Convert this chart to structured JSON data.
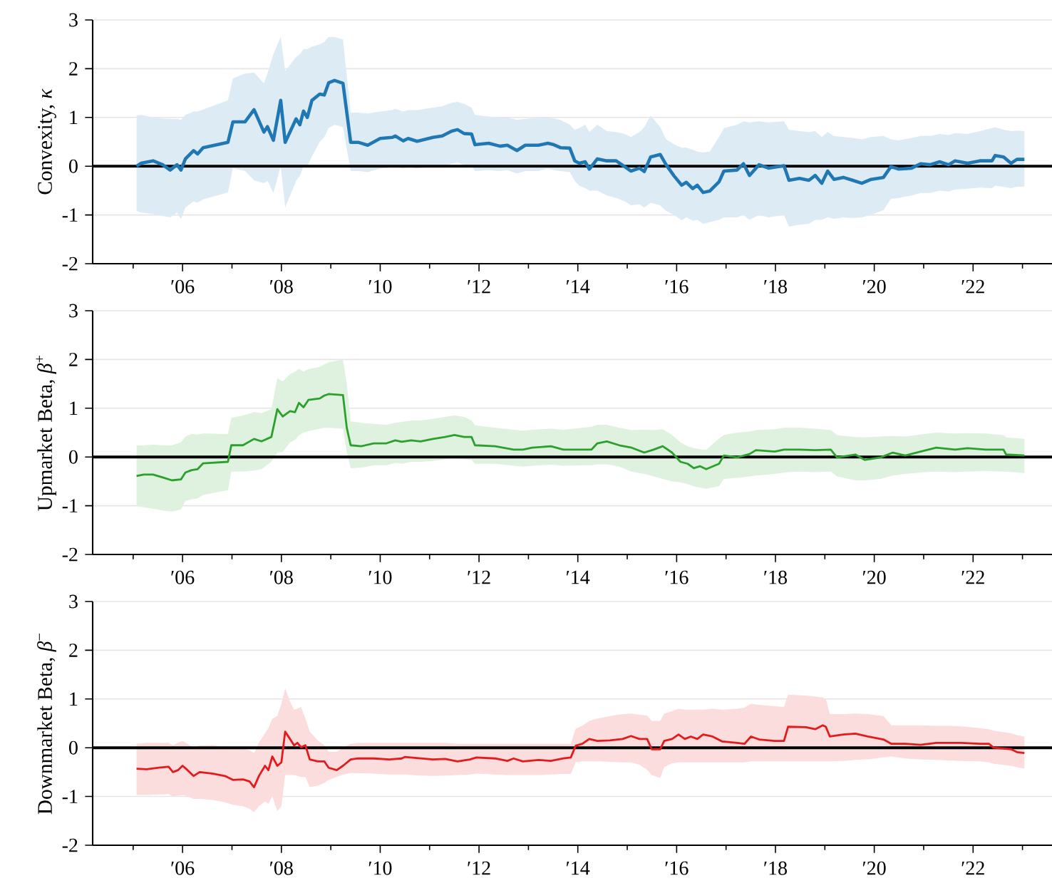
{
  "chart_data": [
    {
      "type": "line",
      "ylabel": "Convexity, *κ*",
      "xlim": [
        "2004-03-07",
        "2023-08-07"
      ],
      "ylim": [
        -2,
        3
      ],
      "yticks": [
        -2,
        -1,
        0,
        1,
        2,
        3
      ],
      "grid": "y",
      "xticks": [
        {
          "value": "2005",
          "label": null
        },
        {
          "value": "2006",
          "label": "′06"
        },
        {
          "value": "2007",
          "label": null
        },
        {
          "value": "2008",
          "label": "′08"
        },
        {
          "value": "2009",
          "label": null
        },
        {
          "value": "2010",
          "label": "′10"
        },
        {
          "value": "2011",
          "label": null
        },
        {
          "value": "2012",
          "label": "′12"
        },
        {
          "value": "2013",
          "label": null
        },
        {
          "value": "2014",
          "label": "′14"
        },
        {
          "value": "2015",
          "label": null
        },
        {
          "value": "2016",
          "label": "′16"
        },
        {
          "value": "2017",
          "label": null
        },
        {
          "value": "2018",
          "label": "′18"
        },
        {
          "value": "2019",
          "label": null
        },
        {
          "value": "2020",
          "label": "′20"
        },
        {
          "value": "2021",
          "label": null
        },
        {
          "value": "2022",
          "label": "′22"
        },
        {
          "value": "2023",
          "label": null
        }
      ],
      "ref_lines": [
        {
          "axis": "y",
          "value": 0,
          "color": "#000000"
        }
      ],
      "x": [
        "2005-01-26",
        "2005-02-28",
        "2005-05-28",
        "2005-08-07",
        "2005-10-01",
        "2005-11-21",
        "2005-12-20",
        "2006-01-22",
        "2006-03-23",
        "2006-04-22",
        "2006-06-02",
        "2006-12-02",
        "2007-01-08",
        "2007-04-08",
        "2007-06-13",
        "2007-08-25",
        "2007-09-20",
        "2007-11-03",
        "2007-12-27",
        "2008-01-29",
        "2008-04-19",
        "2008-05-17",
        "2008-06-13",
        "2008-07-11",
        "2008-08-14",
        "2008-10-11",
        "2008-11-14",
        "2008-12-16",
        "2009-01-29",
        "2009-04-01",
        "2009-05-28",
        "2009-07-22",
        "2009-10-01",
        "2010-01-01",
        "2010-04-01",
        "2010-04-22",
        "2010-06-20",
        "2010-07-26",
        "2010-10-01",
        "2011-01-26",
        "2011-04-04",
        "2011-06-13",
        "2011-07-26",
        "2011-09-13",
        "2011-11-07",
        "2011-12-02",
        "2012-03-13",
        "2012-06-05",
        "2012-07-29",
        "2012-10-08",
        "2012-12-09",
        "2013-03-16",
        "2013-05-25",
        "2013-07-08",
        "2013-08-25",
        "2013-11-03",
        "2013-12-09",
        "2014-01-11",
        "2014-02-25",
        "2014-03-27",
        "2014-05-25",
        "2014-08-03",
        "2014-10-11",
        "2014-12-13",
        "2015-01-29",
        "2015-04-01",
        "2015-05-07",
        "2015-06-23",
        "2015-09-02",
        "2015-10-15",
        "2015-12-13",
        "2016-02-07",
        "2016-03-13",
        "2016-04-29",
        "2016-06-02",
        "2016-07-15",
        "2016-09-02",
        "2016-11-10",
        "2016-12-16",
        "2017-03-23",
        "2017-05-10",
        "2017-06-23",
        "2017-09-02",
        "2017-11-10",
        "2018-03-05",
        "2018-04-11",
        "2018-06-27",
        "2018-09-05",
        "2018-10-22",
        "2018-12-09",
        "2019-01-22",
        "2019-03-09",
        "2019-05-17",
        "2019-07-26",
        "2019-10-01",
        "2019-12-09",
        "2020-03-09",
        "2020-05-03",
        "2020-07-01",
        "2020-10-04",
        "2020-12-09",
        "2021-02-17",
        "2021-04-29",
        "2021-07-04",
        "2021-08-21",
        "2021-11-21",
        "2022-02-21",
        "2022-05-21",
        "2022-06-13",
        "2022-08-14",
        "2022-10-08",
        "2022-11-21",
        "2023-01-15"
      ],
      "series": [
        {
          "color": "#1f77b4",
          "values": [
            0.0,
            0.06,
            0.11,
            0.03,
            -0.08,
            0.03,
            -0.08,
            0.15,
            0.32,
            0.25,
            0.38,
            0.49,
            0.91,
            0.91,
            1.16,
            0.7,
            0.81,
            0.53,
            1.35,
            0.49,
            0.97,
            0.85,
            1.13,
            1.0,
            1.35,
            1.48,
            1.46,
            1.71,
            1.76,
            1.7,
            0.49,
            0.49,
            0.43,
            0.57,
            0.59,
            0.62,
            0.52,
            0.57,
            0.51,
            0.59,
            0.62,
            0.72,
            0.75,
            0.67,
            0.66,
            0.44,
            0.47,
            0.41,
            0.43,
            0.32,
            0.43,
            0.43,
            0.47,
            0.44,
            0.38,
            0.37,
            0.11,
            0.06,
            0.09,
            -0.06,
            0.15,
            0.11,
            0.11,
            -0.01,
            -0.1,
            -0.04,
            -0.11,
            0.19,
            0.24,
            0.03,
            -0.2,
            -0.39,
            -0.33,
            -0.46,
            -0.39,
            -0.54,
            -0.51,
            -0.32,
            -0.1,
            -0.08,
            0.05,
            -0.19,
            0.03,
            -0.04,
            0.01,
            -0.29,
            -0.25,
            -0.29,
            -0.19,
            -0.35,
            -0.1,
            -0.27,
            -0.23,
            -0.29,
            -0.35,
            -0.27,
            -0.23,
            -0.01,
            -0.06,
            -0.04,
            0.05,
            0.03,
            0.09,
            0.03,
            0.11,
            0.06,
            0.11,
            0.11,
            0.22,
            0.19,
            0.06,
            0.14,
            0.14
          ],
          "lower": [
            -0.92,
            -0.95,
            -0.98,
            -1.02,
            -1.05,
            -0.95,
            -1.08,
            -0.85,
            -0.72,
            -0.75,
            -0.68,
            -0.54,
            -0.04,
            -0.1,
            -0.29,
            -0.35,
            -0.3,
            -0.55,
            0.0,
            -0.85,
            -0.3,
            -0.2,
            0.0,
            0.0,
            0.2,
            0.5,
            0.6,
            0.78,
            0.85,
            0.8,
            -0.1,
            -0.1,
            -0.12,
            -0.05,
            -0.02,
            0.0,
            -0.05,
            -0.02,
            -0.05,
            0.0,
            0.0,
            0.05,
            0.08,
            0.02,
            0.0,
            -0.1,
            -0.08,
            -0.1,
            -0.08,
            -0.15,
            -0.1,
            -0.1,
            -0.05,
            -0.08,
            -0.1,
            -0.12,
            -0.3,
            -0.4,
            -0.45,
            -0.5,
            -0.5,
            -0.6,
            -0.65,
            -0.72,
            -0.8,
            -0.78,
            -0.85,
            -0.75,
            -0.8,
            -0.92,
            -1.0,
            -1.11,
            -1.05,
            -1.12,
            -1.1,
            -1.18,
            -1.15,
            -1.1,
            -1.05,
            -1.05,
            -1.0,
            -1.1,
            -1.0,
            -1.05,
            -1.0,
            -1.24,
            -1.2,
            -1.18,
            -1.1,
            -1.1,
            -1.05,
            -1.08,
            -1.05,
            -1.06,
            -1.05,
            -1.0,
            -0.9,
            -0.67,
            -0.65,
            -0.6,
            -0.55,
            -0.55,
            -0.5,
            -0.52,
            -0.48,
            -0.46,
            -0.44,
            -0.45,
            -0.4,
            -0.42,
            -0.45,
            -0.42,
            -0.42
          ],
          "upper": [
            1.04,
            1.05,
            1.0,
            0.98,
            0.97,
            0.97,
            0.95,
            1.05,
            1.12,
            1.12,
            1.16,
            1.35,
            1.8,
            1.9,
            1.92,
            1.7,
            1.9,
            2.3,
            2.65,
            1.95,
            2.24,
            2.3,
            2.4,
            2.4,
            2.45,
            2.5,
            2.55,
            2.65,
            2.65,
            2.6,
            1.1,
            1.1,
            1.08,
            1.12,
            1.15,
            1.18,
            1.12,
            1.15,
            1.15,
            1.2,
            1.23,
            1.3,
            1.32,
            1.28,
            1.2,
            1.05,
            1.02,
            1.0,
            1.0,
            0.95,
            0.97,
            1.0,
            1.0,
            0.98,
            0.95,
            0.85,
            0.75,
            0.78,
            0.85,
            0.7,
            0.85,
            0.72,
            0.7,
            0.66,
            0.6,
            0.7,
            0.8,
            1.04,
            0.8,
            0.55,
            0.45,
            0.38,
            0.38,
            0.34,
            0.3,
            0.28,
            0.3,
            0.6,
            0.78,
            0.85,
            0.92,
            0.9,
            0.92,
            0.9,
            0.92,
            0.75,
            0.72,
            0.7,
            0.72,
            0.6,
            0.7,
            0.62,
            0.6,
            0.58,
            0.55,
            0.6,
            0.62,
            0.55,
            0.53,
            0.58,
            0.62,
            0.62,
            0.66,
            0.64,
            0.68,
            0.66,
            0.72,
            0.78,
            0.8,
            0.75,
            0.72,
            0.73,
            0.72
          ]
        }
      ]
    },
    {
      "type": "line",
      "ylabel": "Upmarket Beta, *β*$^{+}$",
      "xlim": [
        "2004-03-07",
        "2023-08-07"
      ],
      "ylim": [
        -2,
        3
      ],
      "yticks": [
        -2,
        -1,
        0,
        1,
        2,
        3
      ],
      "grid": "y",
      "xticks": [
        {
          "value": "2005",
          "label": null
        },
        {
          "value": "2006",
          "label": "′06"
        },
        {
          "value": "2007",
          "label": null
        },
        {
          "value": "2008",
          "label": "′08"
        },
        {
          "value": "2009",
          "label": null
        },
        {
          "value": "2010",
          "label": "′10"
        },
        {
          "value": "2011",
          "label": null
        },
        {
          "value": "2012",
          "label": "′12"
        },
        {
          "value": "2013",
          "label": null
        },
        {
          "value": "2014",
          "label": "′14"
        },
        {
          "value": "2015",
          "label": null
        },
        {
          "value": "2016",
          "label": "′16"
        },
        {
          "value": "2017",
          "label": null
        },
        {
          "value": "2018",
          "label": "′18"
        },
        {
          "value": "2019",
          "label": null
        },
        {
          "value": "2020",
          "label": "′20"
        },
        {
          "value": "2021",
          "label": null
        },
        {
          "value": "2022",
          "label": "′22"
        },
        {
          "value": "2023",
          "label": null
        }
      ],
      "ref_lines": [
        {
          "axis": "y",
          "value": 0,
          "color": "#000000"
        }
      ],
      "x": [
        "2005-01-26",
        "2005-03-20",
        "2005-05-28",
        "2005-08-07",
        "2005-10-15",
        "2005-12-20",
        "2006-01-22",
        "2006-03-09",
        "2006-04-22",
        "2006-06-02",
        "2006-12-02",
        "2006-12-27",
        "2007-03-23",
        "2007-06-13",
        "2007-08-07",
        "2007-10-19",
        "2007-12-02",
        "2008-01-11",
        "2008-03-05",
        "2008-04-11",
        "2008-05-10",
        "2008-06-13",
        "2008-07-19",
        "2008-10-11",
        "2008-11-14",
        "2008-12-16",
        "2009-04-01",
        "2009-04-29",
        "2009-05-28",
        "2009-08-14",
        "2009-11-14",
        "2010-02-17",
        "2010-04-22",
        "2010-06-09",
        "2010-08-17",
        "2010-10-26",
        "2011-01-26",
        "2011-04-26",
        "2011-07-04",
        "2011-09-13",
        "2011-11-07",
        "2011-12-02",
        "2012-04-29",
        "2012-09-13",
        "2012-11-21",
        "2013-01-29",
        "2013-06-16",
        "2013-09-16",
        "2014-02-03",
        "2014-04-11",
        "2014-05-25",
        "2014-08-03",
        "2014-11-03",
        "2015-02-03",
        "2015-05-07",
        "2015-07-15",
        "2015-09-20",
        "2015-11-28",
        "2016-01-29",
        "2016-03-23",
        "2016-05-07",
        "2016-06-23",
        "2016-08-07",
        "2016-11-10",
        "2016-12-16",
        "2017-03-23",
        "2017-06-23",
        "2017-08-10",
        "2017-12-27",
        "2018-03-05",
        "2018-06-27",
        "2018-10-22",
        "2019-02-14",
        "2019-04-01",
        "2019-08-14",
        "2019-10-22",
        "2020-02-17",
        "2020-05-17",
        "2020-08-17",
        "2020-12-09",
        "2021-04-04",
        "2021-08-21",
        "2021-11-21",
        "2022-04-04",
        "2022-08-14",
        "2022-09-02",
        "2023-01-15"
      ],
      "series": [
        {
          "color": "#2ca02c",
          "values": [
            -0.39,
            -0.36,
            -0.36,
            -0.42,
            -0.48,
            -0.46,
            -0.32,
            -0.27,
            -0.25,
            -0.13,
            -0.1,
            0.24,
            0.24,
            0.37,
            0.32,
            0.41,
            0.98,
            0.83,
            0.94,
            0.92,
            1.11,
            1.02,
            1.17,
            1.2,
            1.26,
            1.29,
            1.27,
            0.6,
            0.24,
            0.22,
            0.28,
            0.28,
            0.34,
            0.31,
            0.34,
            0.32,
            0.37,
            0.41,
            0.45,
            0.41,
            0.41,
            0.24,
            0.22,
            0.15,
            0.15,
            0.19,
            0.22,
            0.15,
            0.15,
            0.15,
            0.28,
            0.32,
            0.24,
            0.19,
            0.09,
            0.15,
            0.22,
            0.09,
            -0.1,
            -0.14,
            -0.23,
            -0.19,
            -0.25,
            -0.14,
            0.03,
            -0.01,
            0.06,
            0.14,
            0.11,
            0.15,
            0.15,
            0.14,
            0.15,
            -0.01,
            0.05,
            -0.06,
            -0.01,
            0.09,
            0.03,
            0.11,
            0.19,
            0.15,
            0.18,
            0.15,
            0.15,
            0.05,
            0.03
          ],
          "lower": [
            -1.0,
            -1.03,
            -1.06,
            -1.1,
            -1.12,
            -1.08,
            -0.9,
            -0.87,
            -0.85,
            -0.78,
            -0.68,
            -0.3,
            -0.3,
            -0.28,
            -0.25,
            -0.1,
            0.09,
            0.1,
            0.3,
            0.35,
            0.45,
            0.5,
            0.53,
            0.58,
            0.6,
            0.6,
            0.58,
            0.1,
            -0.23,
            -0.22,
            -0.17,
            -0.17,
            -0.12,
            -0.14,
            -0.1,
            -0.1,
            -0.08,
            -0.05,
            -0.03,
            -0.05,
            -0.06,
            -0.14,
            -0.14,
            -0.18,
            -0.2,
            -0.18,
            -0.16,
            -0.18,
            -0.17,
            -0.17,
            -0.15,
            -0.15,
            -0.2,
            -0.3,
            -0.35,
            -0.4,
            -0.45,
            -0.5,
            -0.52,
            -0.56,
            -0.6,
            -0.63,
            -0.65,
            -0.6,
            -0.45,
            -0.43,
            -0.4,
            -0.38,
            -0.35,
            -0.32,
            -0.3,
            -0.31,
            -0.3,
            -0.4,
            -0.48,
            -0.48,
            -0.45,
            -0.38,
            -0.35,
            -0.32,
            -0.3,
            -0.31,
            -0.3,
            -0.29,
            -0.3,
            -0.3,
            -0.33
          ],
          "upper": [
            0.24,
            0.24,
            0.25,
            0.24,
            0.24,
            0.3,
            0.42,
            0.47,
            0.46,
            0.48,
            0.47,
            0.8,
            0.85,
            0.92,
            0.9,
            0.98,
            1.62,
            1.55,
            1.7,
            1.75,
            1.81,
            1.75,
            1.8,
            1.85,
            1.9,
            1.94,
            2.0,
            1.5,
            0.73,
            0.7,
            0.68,
            0.66,
            0.7,
            0.72,
            0.75,
            0.75,
            0.78,
            0.82,
            0.85,
            0.82,
            0.75,
            0.65,
            0.6,
            0.56,
            0.54,
            0.56,
            0.58,
            0.56,
            0.6,
            0.62,
            0.66,
            0.66,
            0.6,
            0.55,
            0.56,
            0.55,
            0.57,
            0.45,
            0.3,
            0.22,
            0.18,
            0.16,
            0.15,
            0.38,
            0.45,
            0.5,
            0.52,
            0.55,
            0.57,
            0.6,
            0.6,
            0.58,
            0.55,
            0.45,
            0.41,
            0.4,
            0.42,
            0.43,
            0.42,
            0.46,
            0.5,
            0.48,
            0.49,
            0.48,
            0.45,
            0.4,
            0.37
          ]
        }
      ]
    },
    {
      "type": "line",
      "ylabel": "Downmarket Beta, *β*$^{−}$",
      "xlim": [
        "2004-03-07",
        "2023-08-07"
      ],
      "ylim": [
        -2,
        3
      ],
      "yticks": [
        -2,
        -1,
        0,
        1,
        2,
        3
      ],
      "grid": "y",
      "xticks": [
        {
          "value": "2005",
          "label": null
        },
        {
          "value": "2006",
          "label": "′06"
        },
        {
          "value": "2007",
          "label": null
        },
        {
          "value": "2008",
          "label": "′08"
        },
        {
          "value": "2009",
          "label": null
        },
        {
          "value": "2010",
          "label": "′10"
        },
        {
          "value": "2011",
          "label": null
        },
        {
          "value": "2012",
          "label": "′12"
        },
        {
          "value": "2013",
          "label": null
        },
        {
          "value": "2014",
          "label": "′14"
        },
        {
          "value": "2015",
          "label": null
        },
        {
          "value": "2016",
          "label": "′16"
        },
        {
          "value": "2017",
          "label": null
        },
        {
          "value": "2018",
          "label": "′18"
        },
        {
          "value": "2019",
          "label": null
        },
        {
          "value": "2020",
          "label": "′20"
        },
        {
          "value": "2021",
          "label": null
        },
        {
          "value": "2022",
          "label": "′22"
        },
        {
          "value": "2023",
          "label": null
        }
      ],
      "ref_lines": [
        {
          "axis": "y",
          "value": 0,
          "color": "#000000"
        }
      ],
      "x": [
        "2005-01-26",
        "2005-04-11",
        "2005-07-11",
        "2005-09-20",
        "2005-10-22",
        "2005-11-28",
        "2006-01-01",
        "2006-02-07",
        "2006-03-23",
        "2006-05-07",
        "2006-08-07",
        "2006-11-10",
        "2007-01-08",
        "2007-03-23",
        "2007-05-10",
        "2007-06-13",
        "2007-07-19",
        "2007-09-02",
        "2007-09-27",
        "2007-10-26",
        "2007-12-02",
        "2008-01-01",
        "2008-01-29",
        "2008-03-05",
        "2008-04-04",
        "2008-04-29",
        "2008-05-25",
        "2008-06-27",
        "2008-07-29",
        "2008-09-27",
        "2008-11-14",
        "2008-12-16",
        "2009-02-14",
        "2009-04-01",
        "2009-05-28",
        "2009-07-22",
        "2009-11-14",
        "2010-03-09",
        "2010-06-09",
        "2010-07-01",
        "2010-10-26",
        "2011-01-26",
        "2011-04-26",
        "2011-07-26",
        "2011-10-26",
        "2011-12-13",
        "2012-04-29",
        "2012-07-29",
        "2012-09-13",
        "2012-11-21",
        "2013-03-16",
        "2013-06-16",
        "2013-09-16",
        "2013-11-10",
        "2013-12-16",
        "2014-02-03",
        "2014-03-27",
        "2014-05-25",
        "2014-08-25",
        "2014-11-28",
        "2015-01-29",
        "2015-04-01",
        "2015-05-28",
        "2015-07-01",
        "2015-09-02",
        "2015-10-01",
        "2015-11-28",
        "2016-01-15",
        "2016-03-02",
        "2016-04-15",
        "2016-06-02",
        "2016-07-15",
        "2016-09-23",
        "2016-12-02",
        "2017-03-23",
        "2017-05-17",
        "2017-07-04",
        "2017-09-02",
        "2017-12-27",
        "2018-03-05",
        "2018-04-04",
        "2018-08-14",
        "2018-10-22",
        "2018-12-16",
        "2019-01-08",
        "2019-02-07",
        "2019-05-17",
        "2019-08-14",
        "2019-11-14",
        "2020-03-09",
        "2020-05-07",
        "2020-08-17",
        "2020-12-09",
        "2021-04-04",
        "2021-07-04",
        "2021-10-04",
        "2022-02-21",
        "2022-04-29",
        "2022-06-02",
        "2022-10-08",
        "2022-11-21",
        "2023-01-15"
      ],
      "series": [
        {
          "color": "#e41a1c",
          "values": [
            -0.43,
            -0.44,
            -0.41,
            -0.39,
            -0.5,
            -0.46,
            -0.37,
            -0.46,
            -0.58,
            -0.5,
            -0.53,
            -0.58,
            -0.66,
            -0.65,
            -0.69,
            -0.81,
            -0.58,
            -0.37,
            -0.46,
            -0.18,
            -0.37,
            -0.3,
            0.33,
            0.18,
            0.05,
            0.1,
            0.01,
            0.05,
            -0.24,
            -0.28,
            -0.28,
            -0.41,
            -0.46,
            -0.37,
            -0.24,
            -0.22,
            -0.22,
            -0.24,
            -0.22,
            -0.19,
            -0.22,
            -0.24,
            -0.23,
            -0.28,
            -0.24,
            -0.2,
            -0.22,
            -0.27,
            -0.22,
            -0.28,
            -0.25,
            -0.27,
            -0.22,
            -0.2,
            0.04,
            0.08,
            0.18,
            0.14,
            0.15,
            0.18,
            0.24,
            0.18,
            0.18,
            -0.03,
            -0.03,
            0.14,
            0.18,
            0.27,
            0.18,
            0.23,
            0.18,
            0.27,
            0.23,
            0.13,
            0.1,
            0.08,
            0.23,
            0.17,
            0.14,
            0.14,
            0.43,
            0.42,
            0.38,
            0.46,
            0.43,
            0.23,
            0.27,
            0.29,
            0.23,
            0.17,
            0.08,
            0.08,
            0.06,
            0.1,
            0.1,
            0.1,
            0.08,
            0.08,
            0.0,
            -0.03,
            -0.09,
            -0.11
          ],
          "lower": [
            -0.97,
            -0.97,
            -0.96,
            -0.95,
            -1.0,
            -0.98,
            -0.97,
            -1.0,
            -1.05,
            -1.05,
            -1.07,
            -1.12,
            -1.17,
            -1.2,
            -1.25,
            -1.32,
            -1.2,
            -1.1,
            -1.15,
            -1.0,
            -1.3,
            -1.2,
            -0.56,
            -0.56,
            -0.56,
            -0.58,
            -0.6,
            -0.6,
            -0.81,
            -0.78,
            -0.72,
            -0.66,
            -0.6,
            -0.55,
            -0.52,
            -0.52,
            -0.53,
            -0.55,
            -0.55,
            -0.55,
            -0.57,
            -0.58,
            -0.57,
            -0.56,
            -0.55,
            -0.53,
            -0.55,
            -0.56,
            -0.56,
            -0.56,
            -0.56,
            -0.55,
            -0.54,
            -0.54,
            -0.3,
            -0.28,
            -0.28,
            -0.28,
            -0.29,
            -0.3,
            -0.3,
            -0.35,
            -0.45,
            -0.56,
            -0.62,
            -0.4,
            -0.32,
            -0.3,
            -0.3,
            -0.3,
            -0.3,
            -0.3,
            -0.3,
            -0.3,
            -0.3,
            -0.3,
            -0.28,
            -0.28,
            -0.28,
            -0.28,
            -0.28,
            -0.28,
            -0.28,
            -0.28,
            -0.28,
            -0.28,
            -0.27,
            -0.25,
            -0.24,
            -0.2,
            -0.18,
            -0.22,
            -0.24,
            -0.25,
            -0.26,
            -0.27,
            -0.28,
            -0.3,
            -0.33,
            -0.37,
            -0.4,
            -0.43
          ],
          "upper": [
            0.08,
            0.1,
            0.1,
            0.1,
            0.05,
            0.1,
            0.14,
            0.08,
            0.0,
            0.05,
            0.05,
            0.02,
            0.0,
            -0.02,
            -0.05,
            -0.11,
            0.1,
            0.3,
            0.4,
            0.6,
            0.65,
            0.9,
            1.22,
            0.95,
            0.78,
            0.8,
            0.84,
            0.6,
            0.33,
            0.15,
            0.05,
            -0.08,
            -0.08,
            0.0,
            0.08,
            0.1,
            0.1,
            0.1,
            0.1,
            0.1,
            0.1,
            0.1,
            0.1,
            0.08,
            0.08,
            0.08,
            0.08,
            0.08,
            0.08,
            0.08,
            0.08,
            0.08,
            0.08,
            0.08,
            0.39,
            0.45,
            0.55,
            0.6,
            0.65,
            0.69,
            0.7,
            0.68,
            0.66,
            0.55,
            0.55,
            0.7,
            0.75,
            0.8,
            0.78,
            0.78,
            0.78,
            0.78,
            0.8,
            0.78,
            0.8,
            0.82,
            0.9,
            0.88,
            0.85,
            0.84,
            1.09,
            1.07,
            1.05,
            1.03,
            1.0,
            0.69,
            0.69,
            0.7,
            0.69,
            0.65,
            0.46,
            0.46,
            0.46,
            0.45,
            0.45,
            0.44,
            0.4,
            0.38,
            0.35,
            0.3,
            0.26,
            0.23
          ]
        }
      ]
    }
  ]
}
